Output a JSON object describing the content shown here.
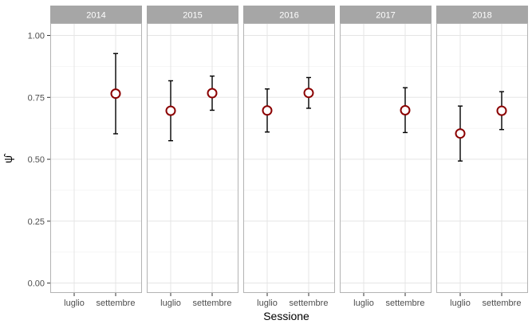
{
  "chart_data": {
    "type": "scatter",
    "subtype": "point-with-errorbars-faceted",
    "xlabel": "Sessione",
    "ylabel": "ψ̂",
    "ylim": [
      -0.04,
      1.05
    ],
    "yticks": [
      0.0,
      0.25,
      0.5,
      0.75,
      1.0
    ],
    "ytick_labels": [
      "0.00",
      "0.25",
      "0.50",
      "0.75",
      "1.00"
    ],
    "categories": [
      "luglio",
      "settembre"
    ],
    "grid": true,
    "colors": {
      "point_stroke": "#8b0000",
      "point_fill": "#ffffff",
      "errorbar": "#000000",
      "strip_bg": "#a6a6a6",
      "strip_text": "#ffffff",
      "grid": "#e5e5e5",
      "panel_border": "#b3b3b3"
    },
    "facets": [
      {
        "label": "2014",
        "points": [
          {
            "x": "settembre",
            "y": 0.765,
            "lower": 0.603,
            "upper": 0.927
          }
        ]
      },
      {
        "label": "2015",
        "points": [
          {
            "x": "luglio",
            "y": 0.696,
            "lower": 0.575,
            "upper": 0.817
          },
          {
            "x": "settembre",
            "y": 0.767,
            "lower": 0.698,
            "upper": 0.836
          }
        ]
      },
      {
        "label": "2016",
        "points": [
          {
            "x": "luglio",
            "y": 0.697,
            "lower": 0.61,
            "upper": 0.784
          },
          {
            "x": "settembre",
            "y": 0.768,
            "lower": 0.706,
            "upper": 0.83
          }
        ]
      },
      {
        "label": "2017",
        "points": [
          {
            "x": "settembre",
            "y": 0.698,
            "lower": 0.608,
            "upper": 0.789
          }
        ]
      },
      {
        "label": "2018",
        "points": [
          {
            "x": "luglio",
            "y": 0.604,
            "lower": 0.493,
            "upper": 0.715
          },
          {
            "x": "settembre",
            "y": 0.696,
            "lower": 0.62,
            "upper": 0.773
          }
        ]
      }
    ]
  }
}
